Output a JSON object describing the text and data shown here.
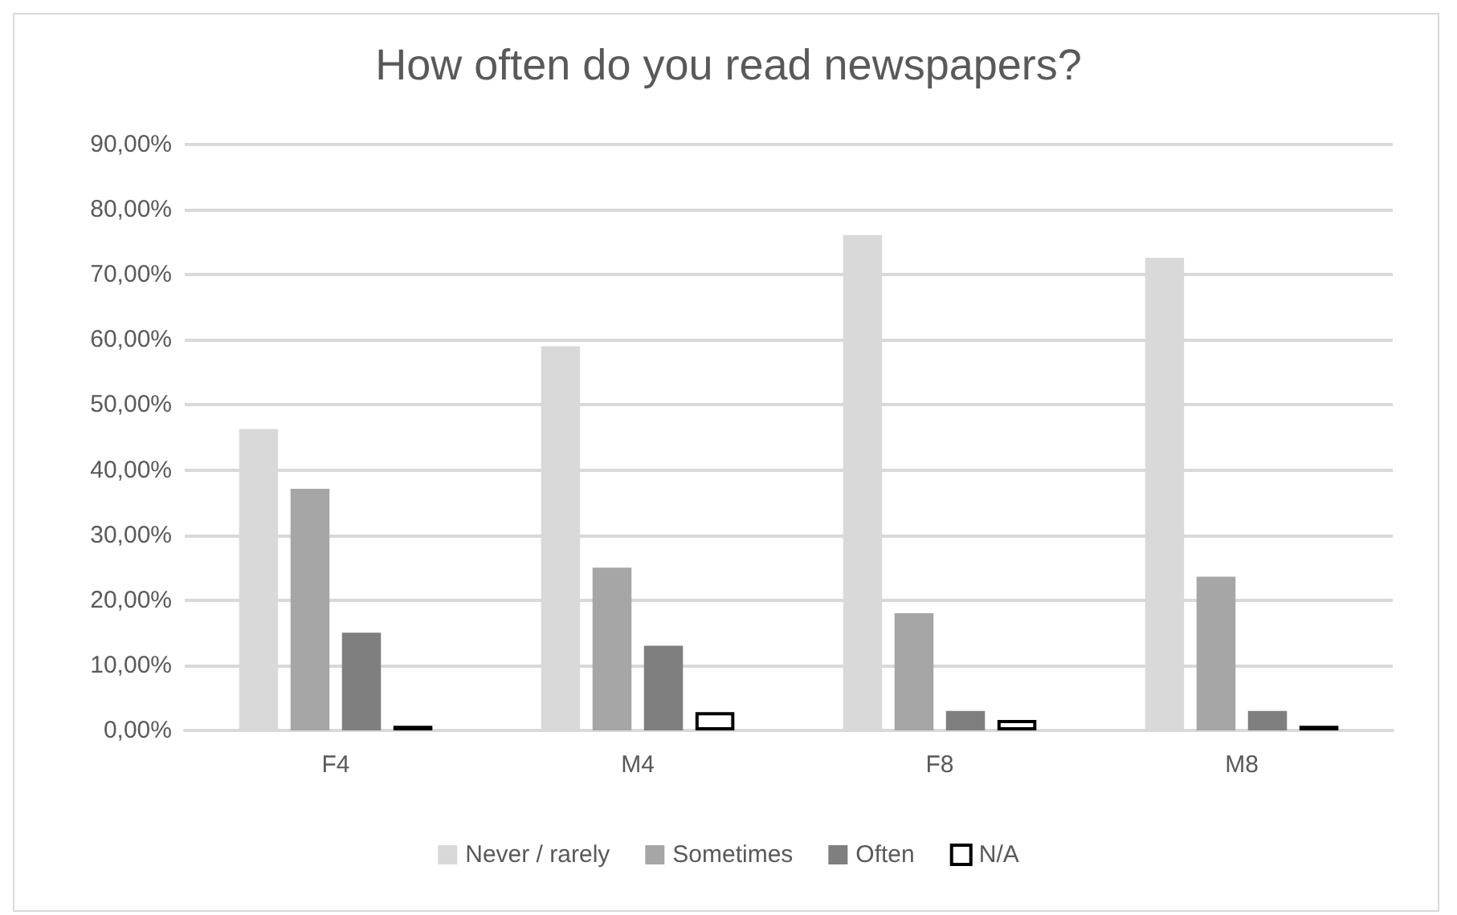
{
  "chart_data": {
    "type": "bar",
    "title": "How often do you read newspapers?",
    "categories": [
      "F4",
      "M4",
      "F8",
      "M8"
    ],
    "series": [
      {
        "name": "Never / rarely",
        "color": "#d9d9d9",
        "values": [
          46.3,
          59.0,
          76.1,
          72.6
        ]
      },
      {
        "name": "Sometimes",
        "color": "#a6a6a6",
        "values": [
          37.1,
          25.0,
          18.0,
          23.6
        ]
      },
      {
        "name": "Often",
        "color": "#7f7f7f",
        "values": [
          15.0,
          13.0,
          3.0,
          3.0
        ]
      },
      {
        "name": "N/A",
        "color": "#ffffff",
        "values": [
          0.7,
          2.8,
          1.6,
          0.7
        ]
      }
    ],
    "ylim": [
      0,
      90
    ],
    "yticks": [
      {
        "value": 0,
        "label": "0,00%"
      },
      {
        "value": 10,
        "label": "10,00%"
      },
      {
        "value": 20,
        "label": "20,00%"
      },
      {
        "value": 30,
        "label": "30,00%"
      },
      {
        "value": 40,
        "label": "40,00%"
      },
      {
        "value": 50,
        "label": "50,00%"
      },
      {
        "value": 60,
        "label": "60,00%"
      },
      {
        "value": 70,
        "label": "70,00%"
      },
      {
        "value": 80,
        "label": "80,00%"
      },
      {
        "value": 90,
        "label": "90,00%"
      }
    ],
    "grid": "y",
    "legend": "bottom"
  }
}
